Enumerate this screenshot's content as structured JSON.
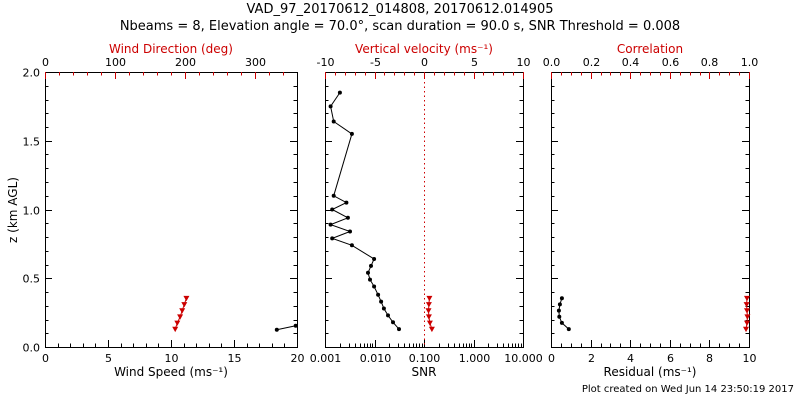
{
  "header": {
    "title": "VAD_97_20170612_014808, 20170612.014905",
    "subtitle": "Nbeams = 8, Elevation angle = 70.0°, scan duration = 90.0 s, SNR Threshold = 0.008"
  },
  "footer": {
    "created": "Plot created on Wed Jun 14 23:50:19 2017"
  },
  "colors": {
    "primary": "#000000",
    "secondary": "#cc0000"
  },
  "chart_data": [
    {
      "type": "scatter",
      "name": "wind",
      "y_axis": {
        "label": "z (km AGL)",
        "range": [
          0,
          2
        ],
        "ticks": [
          0,
          0.5,
          1,
          1.5,
          2
        ],
        "tick_labels": [
          "0.0",
          "0.5",
          "1.0",
          "1.5",
          "2.0"
        ],
        "minor": 0.1,
        "show_labels": true
      },
      "bottom_axis": {
        "label": "Wind Speed (ms⁻¹)",
        "range": [
          0,
          20
        ],
        "ticks": [
          0,
          5,
          10,
          15,
          20
        ],
        "tick_labels": [
          "0",
          "5",
          "10",
          "15",
          "20"
        ],
        "minor": 1,
        "color": "#000000"
      },
      "top_axis": {
        "label": "Wind Direction (deg)",
        "range": [
          0,
          360
        ],
        "ticks": [
          0,
          100,
          200,
          300
        ],
        "tick_labels": [
          "0",
          "100",
          "200",
          "300"
        ],
        "minor": 20,
        "color": "#cc0000"
      },
      "series": [
        {
          "name": "wind-speed",
          "axis": "bottom",
          "color": "#000000",
          "marker": "dot",
          "points": [
            {
              "x": 18.4,
              "z": 0.125
            },
            {
              "x": 19.9,
              "z": 0.155
            }
          ]
        },
        {
          "name": "wind-direction",
          "axis": "top",
          "color": "#cc0000",
          "marker": "triangle",
          "points": [
            {
              "x": 186,
              "z": 0.13
            },
            {
              "x": 189,
              "z": 0.175
            },
            {
              "x": 193,
              "z": 0.22
            },
            {
              "x": 196,
              "z": 0.265
            },
            {
              "x": 199,
              "z": 0.31
            },
            {
              "x": 202,
              "z": 0.355
            }
          ]
        }
      ]
    },
    {
      "type": "line",
      "name": "snr",
      "y_axis": {
        "range": [
          0,
          2
        ],
        "ticks": [
          0,
          0.5,
          1,
          1.5,
          2
        ],
        "minor": 0.1,
        "show_labels": false
      },
      "bottom_axis": {
        "label": "SNR",
        "scale": "log",
        "range": [
          0.001,
          10
        ],
        "ticks": [
          0.001,
          0.01,
          0.1,
          1,
          10
        ],
        "tick_labels": [
          "0.001",
          "0.010",
          "0.100",
          "1.000",
          "10.000"
        ],
        "color": "#000000"
      },
      "top_axis": {
        "label": "Vertical velocity (ms⁻¹)",
        "range": [
          -10,
          10
        ],
        "ticks": [
          -10,
          -5,
          0,
          5,
          10
        ],
        "tick_labels": [
          "-10",
          "-5",
          "0",
          "5",
          "10"
        ],
        "minor": 1,
        "color": "#cc0000"
      },
      "refline": {
        "axis": "top",
        "value": 0,
        "color": "#cc0000",
        "style": "dotted"
      },
      "series": [
        {
          "name": "snr-profile",
          "axis": "bottom",
          "color": "#000000",
          "marker": "dot",
          "points": [
            {
              "x": 0.0313,
              "z": 0.13
            },
            {
              "x": 0.0236,
              "z": 0.18
            },
            {
              "x": 0.0187,
              "z": 0.23
            },
            {
              "x": 0.0155,
              "z": 0.28
            },
            {
              "x": 0.0136,
              "z": 0.33
            },
            {
              "x": 0.0118,
              "z": 0.38
            },
            {
              "x": 0.0098,
              "z": 0.44
            },
            {
              "x": 0.0081,
              "z": 0.49
            },
            {
              "x": 0.0074,
              "z": 0.54
            },
            {
              "x": 0.0085,
              "z": 0.59
            },
            {
              "x": 0.0098,
              "z": 0.64
            },
            {
              "x": 0.0035,
              "z": 0.74
            },
            {
              "x": 0.0014,
              "z": 0.79
            },
            {
              "x": 0.0032,
              "z": 0.84
            },
            {
              "x": 0.0013,
              "z": 0.89
            },
            {
              "x": 0.0029,
              "z": 0.94
            },
            {
              "x": 0.0014,
              "z": 1.0
            },
            {
              "x": 0.0027,
              "z": 1.05
            },
            {
              "x": 0.0015,
              "z": 1.1
            },
            {
              "x": 0.0035,
              "z": 1.55
            },
            {
              "x": 0.0015,
              "z": 1.64
            },
            {
              "x": 0.0013,
              "z": 1.75
            },
            {
              "x": 0.002,
              "z": 1.85
            }
          ]
        },
        {
          "name": "vertical-velocity",
          "axis": "top",
          "color": "#cc0000",
          "marker": "triangle",
          "points": [
            {
              "x": 0.8,
              "z": 0.13
            },
            {
              "x": 0.6,
              "z": 0.175
            },
            {
              "x": 0.5,
              "z": 0.22
            },
            {
              "x": 0.45,
              "z": 0.265
            },
            {
              "x": 0.5,
              "z": 0.31
            },
            {
              "x": 0.55,
              "z": 0.355
            }
          ]
        }
      ]
    },
    {
      "type": "scatter",
      "name": "residual",
      "y_axis": {
        "range": [
          0,
          2
        ],
        "ticks": [
          0,
          0.5,
          1,
          1.5,
          2
        ],
        "minor": 0.1,
        "show_labels": false
      },
      "bottom_axis": {
        "label": "Residual (ms⁻¹)",
        "range": [
          0,
          10
        ],
        "ticks": [
          0,
          2,
          4,
          6,
          8,
          10
        ],
        "tick_labels": [
          "0",
          "2",
          "4",
          "6",
          "8",
          "10"
        ],
        "minor": 0.5,
        "color": "#000000"
      },
      "top_axis": {
        "label": "Correlation",
        "range": [
          0,
          1
        ],
        "ticks": [
          0,
          0.2,
          0.4,
          0.6,
          0.8,
          1
        ],
        "tick_labels": [
          "0.0",
          "0.2",
          "0.4",
          "0.6",
          "0.8",
          "1.0"
        ],
        "minor": 0.05,
        "color": "#cc0000"
      },
      "series": [
        {
          "name": "residual-profile",
          "axis": "bottom",
          "color": "#000000",
          "marker": "dot",
          "points": [
            {
              "x": 0.9,
              "z": 0.13
            },
            {
              "x": 0.55,
              "z": 0.175
            },
            {
              "x": 0.42,
              "z": 0.22
            },
            {
              "x": 0.4,
              "z": 0.265
            },
            {
              "x": 0.45,
              "z": 0.31
            },
            {
              "x": 0.55,
              "z": 0.355
            }
          ]
        },
        {
          "name": "correlation",
          "axis": "top",
          "color": "#cc0000",
          "marker": "triangle",
          "points": [
            {
              "x": 0.985,
              "z": 0.13
            },
            {
              "x": 0.99,
              "z": 0.175
            },
            {
              "x": 0.992,
              "z": 0.22
            },
            {
              "x": 0.99,
              "z": 0.265
            },
            {
              "x": 0.988,
              "z": 0.31
            },
            {
              "x": 0.99,
              "z": 0.355
            }
          ]
        }
      ]
    }
  ]
}
